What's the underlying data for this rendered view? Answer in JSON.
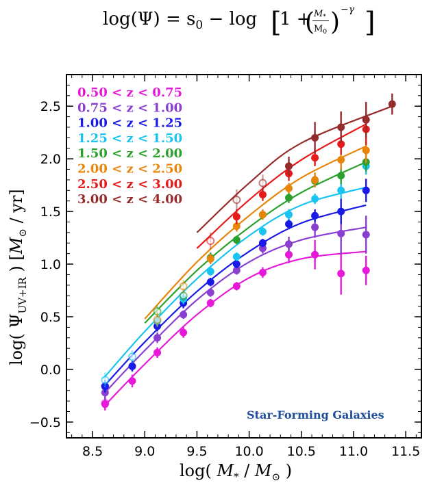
{
  "formula": {
    "lhs": "log(Ψ) = s",
    "lhs_sub": "0",
    "mid": " − log",
    "one_plus": "1 +",
    "num": "M",
    "num_sub": "*",
    "den": "M",
    "den_sub": "0",
    "exponent": "−γ"
  },
  "chart_data": {
    "type": "scatter",
    "xlabel": {
      "pre": "log( ",
      "sym": "M",
      "sub": "*",
      "mid": " / ",
      "sym2": "M",
      "sub2": "⊙",
      "post": " )"
    },
    "ylabel": {
      "pre": "log( Ψ",
      "sub": "UV+IR",
      "mid": " ) [",
      "sym": "M",
      "sub2": "⊙",
      "post": " / yr]"
    },
    "xlim": [
      8.25,
      11.65
    ],
    "ylim": [
      -0.65,
      2.8
    ],
    "xticks": [
      "8.5",
      "9.0",
      "9.5",
      "10.0",
      "10.5",
      "11.0",
      "11.5"
    ],
    "yticks": [
      "−0.5",
      "0.0",
      "0.5",
      "1.0",
      "1.5",
      "2.0",
      "2.5"
    ],
    "annotation": "Star-Forming Galaxies",
    "legend_position": "top-left",
    "series": [
      {
        "name": "0.50 < z < 0.75",
        "color": "#e619d9",
        "points": [
          [
            8.62,
            -0.32,
            0.07,
            true
          ],
          [
            8.62,
            -0.33,
            0.06,
            false
          ],
          [
            8.88,
            -0.11,
            0.06,
            false
          ],
          [
            9.12,
            0.16,
            0.05,
            false
          ],
          [
            9.37,
            0.35,
            0.05,
            false
          ],
          [
            9.63,
            0.63,
            0.04,
            false
          ],
          [
            9.88,
            0.79,
            0.04,
            false
          ],
          [
            10.13,
            0.92,
            0.05,
            false
          ],
          [
            10.38,
            1.09,
            0.08,
            false
          ],
          [
            10.63,
            1.09,
            0.14,
            false
          ],
          [
            10.88,
            0.91,
            0.2,
            false
          ],
          [
            11.12,
            0.94,
            0.14,
            false
          ]
        ],
        "curve": [
          [
            8.6,
            -0.36
          ],
          [
            9.0,
            0.05
          ],
          [
            9.5,
            0.52
          ],
          [
            10.0,
            0.87
          ],
          [
            10.5,
            1.05
          ],
          [
            11.12,
            1.12
          ]
        ]
      },
      {
        "name": "0.75 < z < 1.00",
        "color": "#8a3fd1",
        "points": [
          [
            8.62,
            -0.22,
            0.07,
            false
          ],
          [
            8.62,
            -0.16,
            0.06,
            true
          ],
          [
            8.88,
            0.03,
            0.05,
            false
          ],
          [
            9.12,
            0.3,
            0.05,
            false
          ],
          [
            9.37,
            0.52,
            0.04,
            false
          ],
          [
            9.63,
            0.73,
            0.04,
            false
          ],
          [
            9.88,
            0.94,
            0.04,
            false
          ],
          [
            10.13,
            1.15,
            0.05,
            false
          ],
          [
            10.38,
            1.19,
            0.07,
            false
          ],
          [
            10.63,
            1.35,
            0.1,
            false
          ],
          [
            10.88,
            1.29,
            0.2,
            false
          ],
          [
            11.12,
            1.28,
            0.18,
            false
          ]
        ],
        "curve": [
          [
            8.6,
            -0.24
          ],
          [
            9.0,
            0.18
          ],
          [
            9.5,
            0.66
          ],
          [
            10.0,
            1.02
          ],
          [
            10.5,
            1.23
          ],
          [
            11.12,
            1.35
          ]
        ]
      },
      {
        "name": "1.00 < z < 1.25",
        "color": "#1a1ae6",
        "points": [
          [
            8.62,
            -0.16,
            0.06,
            false
          ],
          [
            8.88,
            0.03,
            0.05,
            false
          ],
          [
            9.12,
            0.41,
            0.05,
            false
          ],
          [
            9.37,
            0.63,
            0.05,
            false
          ],
          [
            9.63,
            0.83,
            0.04,
            false
          ],
          [
            9.88,
            1.0,
            0.04,
            false
          ],
          [
            10.13,
            1.2,
            0.04,
            false
          ],
          [
            10.38,
            1.38,
            0.05,
            false
          ],
          [
            10.63,
            1.46,
            0.06,
            false
          ],
          [
            10.88,
            1.5,
            0.12,
            false
          ],
          [
            11.12,
            1.7,
            0.11,
            false
          ]
        ],
        "curve": [
          [
            8.6,
            -0.17
          ],
          [
            9.0,
            0.26
          ],
          [
            9.5,
            0.74
          ],
          [
            10.0,
            1.12
          ],
          [
            10.5,
            1.39
          ],
          [
            11.12,
            1.56
          ]
        ]
      },
      {
        "name": "1.25 < z < 1.50",
        "color": "#19c4f0",
        "points": [
          [
            8.62,
            -0.1,
            0.07,
            true
          ],
          [
            8.88,
            0.12,
            0.06,
            true
          ],
          [
            9.12,
            0.46,
            0.05,
            false
          ],
          [
            9.37,
            0.67,
            0.05,
            false
          ],
          [
            9.63,
            0.93,
            0.04,
            false
          ],
          [
            9.88,
            1.07,
            0.04,
            false
          ],
          [
            10.13,
            1.31,
            0.04,
            false
          ],
          [
            10.38,
            1.47,
            0.05,
            false
          ],
          [
            10.63,
            1.62,
            0.05,
            false
          ],
          [
            10.88,
            1.7,
            0.08,
            false
          ],
          [
            11.12,
            1.93,
            0.08,
            false
          ]
        ],
        "curve": [
          [
            8.6,
            -0.09
          ],
          [
            9.0,
            0.36
          ],
          [
            9.5,
            0.86
          ],
          [
            10.0,
            1.27
          ],
          [
            10.5,
            1.56
          ],
          [
            11.12,
            1.73
          ]
        ]
      },
      {
        "name": "1.50 < z < 2.00",
        "color": "#2ca02c",
        "points": [
          [
            9.12,
            0.55,
            0.06,
            true
          ],
          [
            9.37,
            0.7,
            0.05,
            true
          ],
          [
            9.63,
            1.06,
            0.05,
            false
          ],
          [
            9.88,
            1.23,
            0.04,
            false
          ],
          [
            10.13,
            1.47,
            0.04,
            false
          ],
          [
            10.38,
            1.63,
            0.05,
            false
          ],
          [
            10.63,
            1.79,
            0.06,
            false
          ],
          [
            10.88,
            1.84,
            0.08,
            false
          ],
          [
            11.12,
            1.97,
            0.09,
            false
          ]
        ],
        "curve": [
          [
            9.0,
            0.44
          ],
          [
            9.5,
            0.94
          ],
          [
            10.0,
            1.35
          ],
          [
            10.5,
            1.68
          ],
          [
            11.12,
            1.97
          ]
        ]
      },
      {
        "name": "2.00 < z < 2.50",
        "color": "#e8860c",
        "points": [
          [
            9.12,
            0.47,
            0.07,
            true
          ],
          [
            9.37,
            0.79,
            0.06,
            true
          ],
          [
            9.63,
            1.05,
            0.05,
            false
          ],
          [
            9.88,
            1.36,
            0.05,
            false
          ],
          [
            10.13,
            1.47,
            0.05,
            false
          ],
          [
            10.38,
            1.72,
            0.05,
            false
          ],
          [
            10.63,
            1.8,
            0.07,
            false
          ],
          [
            10.88,
            1.99,
            0.09,
            false
          ],
          [
            11.12,
            2.08,
            0.12,
            false
          ]
        ],
        "curve": [
          [
            9.0,
            0.48
          ],
          [
            9.5,
            1.02
          ],
          [
            10.0,
            1.46
          ],
          [
            10.5,
            1.82
          ],
          [
            11.12,
            2.12
          ]
        ]
      },
      {
        "name": "2.50 < z < 3.00",
        "color": "#e61a1a",
        "points": [
          [
            9.63,
            1.22,
            0.08,
            true
          ],
          [
            9.88,
            1.45,
            0.07,
            false
          ],
          [
            10.13,
            1.66,
            0.06,
            false
          ],
          [
            10.38,
            1.86,
            0.07,
            false
          ],
          [
            10.63,
            2.01,
            0.08,
            false
          ],
          [
            10.88,
            2.14,
            0.1,
            false
          ],
          [
            11.12,
            2.28,
            0.15,
            false
          ]
        ],
        "curve": [
          [
            9.5,
            1.15
          ],
          [
            10.0,
            1.61
          ],
          [
            10.5,
            1.99
          ],
          [
            11.12,
            2.33
          ]
        ]
      },
      {
        "name": "3.00 < z < 4.00",
        "color": "#962b2b",
        "points": [
          [
            9.88,
            1.61,
            0.1,
            true
          ],
          [
            10.13,
            1.77,
            0.08,
            true
          ],
          [
            10.38,
            1.93,
            0.09,
            false
          ],
          [
            10.63,
            2.2,
            0.15,
            false
          ],
          [
            10.88,
            2.3,
            0.15,
            false
          ],
          [
            11.12,
            2.37,
            0.17,
            false
          ],
          [
            11.37,
            2.52,
            0.1,
            false
          ]
        ],
        "curve": [
          [
            9.5,
            1.3
          ],
          [
            10.0,
            1.77
          ],
          [
            10.5,
            2.15
          ],
          [
            11.37,
            2.5
          ]
        ]
      }
    ]
  }
}
